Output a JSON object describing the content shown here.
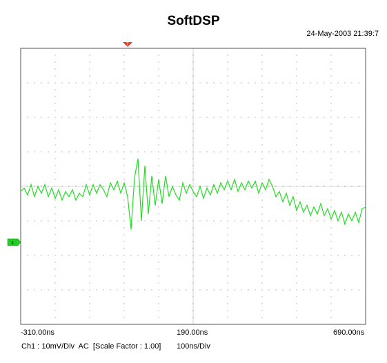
{
  "window": {
    "title": "SoftDSP",
    "datetime": "24-May-2003 21:39:7"
  },
  "markers": {
    "trigger_marker": "T",
    "channel_marker": "1",
    "trigger_color": "#d93a2a",
    "channel_color": "#22cc22"
  },
  "colors": {
    "trace": "#22dd22",
    "grid": "#888888",
    "frame": "#555555"
  },
  "footer": {
    "channel_info": "Ch1 : 10mV/Div  AC  [Scale Factor : 1.00]",
    "timebase": "100ns/Div"
  },
  "chart_data": {
    "type": "line",
    "title": "SoftDSP",
    "x_tick_labels": [
      "-310.00ns",
      "190.00ns",
      "690.00ns"
    ],
    "xlim_ns": [
      -310,
      690
    ],
    "ylim_div": [
      -4,
      4
    ],
    "grid": true,
    "series": [
      {
        "x_ns": [
          -310,
          -300,
          -290,
          -280,
          -270,
          -260,
          -250,
          -240,
          -230,
          -220,
          -210,
          -200,
          -190,
          -180,
          -170,
          -160,
          -150,
          -140,
          -130,
          -120,
          -110,
          -100,
          -90,
          -80,
          -70,
          -60,
          -50,
          -40,
          -30,
          -20,
          -10,
          0,
          10,
          20,
          30,
          40,
          50,
          60,
          70,
          80,
          90,
          100,
          110,
          120,
          130,
          140,
          150,
          160,
          170,
          180,
          190,
          200,
          210,
          220,
          230,
          240,
          250,
          260,
          270,
          280,
          290,
          300,
          310,
          320,
          330,
          340,
          350,
          360,
          370,
          380,
          390,
          400,
          410,
          420,
          430,
          440,
          450,
          460,
          470,
          480,
          490,
          500,
          510,
          520,
          530,
          540,
          550,
          560,
          570,
          580,
          590,
          600,
          610,
          620,
          630,
          640,
          650,
          660,
          670,
          680,
          690
        ],
        "y_div": [
          -0.15,
          -0.05,
          -0.25,
          0.05,
          -0.3,
          0.0,
          -0.2,
          0.05,
          -0.3,
          -0.05,
          -0.35,
          -0.1,
          -0.4,
          -0.15,
          -0.3,
          -0.1,
          -0.4,
          -0.2,
          -0.3,
          0.05,
          -0.25,
          0.05,
          -0.2,
          0.05,
          -0.1,
          -0.3,
          0.1,
          -0.1,
          0.15,
          -0.2,
          0.1,
          -0.3,
          -1.25,
          0.25,
          0.8,
          -1.0,
          0.6,
          -0.8,
          0.3,
          -0.55,
          0.2,
          -0.5,
          0.3,
          -0.3,
          0.0,
          -0.25,
          -0.4,
          0.1,
          -0.2,
          0.05,
          -0.15,
          -0.3,
          0.0,
          -0.35,
          -0.05,
          -0.25,
          0.05,
          -0.2,
          0.1,
          -0.1,
          0.15,
          -0.1,
          0.2,
          -0.15,
          0.1,
          -0.1,
          0.15,
          -0.05,
          0.15,
          -0.2,
          0.1,
          -0.1,
          0.2,
          0.0,
          -0.3,
          -0.15,
          -0.45,
          -0.2,
          -0.55,
          -0.3,
          -0.7,
          -0.45,
          -0.75,
          -0.55,
          -0.85,
          -0.6,
          -0.8,
          -0.5,
          -0.85,
          -0.65,
          -0.95,
          -0.7,
          -1.0,
          -0.75,
          -1.1,
          -0.8,
          -1.0,
          -0.75,
          -1.05,
          -0.65,
          -0.6
        ]
      }
    ]
  }
}
